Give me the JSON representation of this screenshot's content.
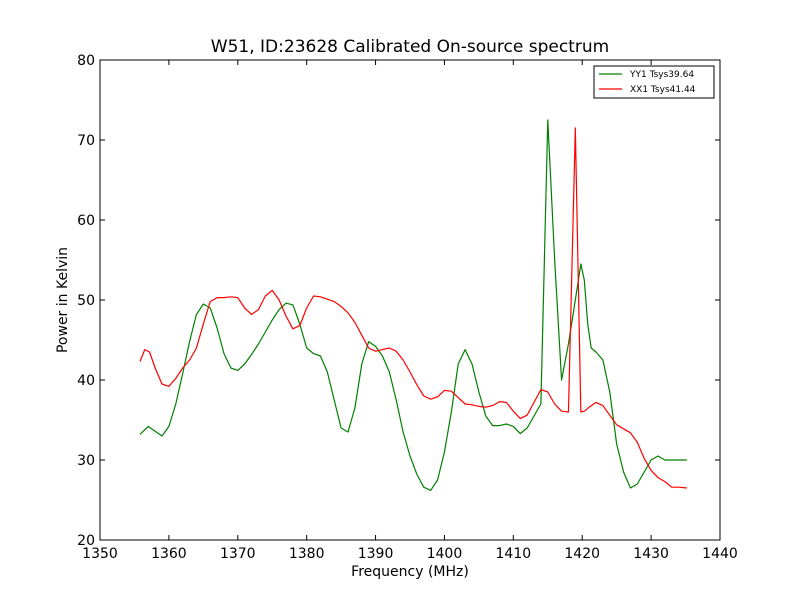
{
  "chart_data": {
    "type": "line",
    "title": "W51, ID:23628 Calibrated On-source spectrum",
    "xlabel": "Frequency (MHz)",
    "ylabel": "Power in Kelvin",
    "xlim": [
      1350,
      1440
    ],
    "ylim": [
      20,
      80
    ],
    "xticks": [
      1350,
      1360,
      1370,
      1380,
      1390,
      1400,
      1410,
      1420,
      1430,
      1440
    ],
    "yticks": [
      20,
      30,
      40,
      50,
      60,
      70,
      80
    ],
    "grid": false,
    "legend_position": "top-right",
    "series": [
      {
        "name": "YY1 Tsys39.64",
        "color": "#008000",
        "x": [
          1355.8,
          1357.0,
          1358.0,
          1359.0,
          1360.0,
          1361.0,
          1362.0,
          1363.0,
          1364.0,
          1365.0,
          1366.0,
          1367.0,
          1368.0,
          1369.0,
          1370.0,
          1371.0,
          1372.0,
          1373.0,
          1374.0,
          1375.0,
          1376.0,
          1377.0,
          1378.0,
          1379.0,
          1380.0,
          1381.0,
          1382.0,
          1383.0,
          1384.0,
          1385.0,
          1386.0,
          1387.0,
          1388.0,
          1389.0,
          1390.0,
          1391.0,
          1392.0,
          1393.0,
          1394.0,
          1395.0,
          1396.0,
          1397.0,
          1398.0,
          1399.0,
          1400.0,
          1401.0,
          1402.0,
          1403.0,
          1404.0,
          1405.0,
          1406.0,
          1407.0,
          1408.0,
          1409.0,
          1410.0,
          1411.0,
          1412.0,
          1413.0,
          1414.0,
          1415.0,
          1416.0,
          1417.0,
          1418.0,
          1419.0,
          1419.8,
          1420.3,
          1420.8,
          1421.3,
          1422.0,
          1423.0,
          1424.0,
          1425.0,
          1426.0,
          1427.0,
          1428.0,
          1429.0,
          1430.0,
          1431.0,
          1432.0,
          1433.0,
          1434.0,
          1435.2
        ],
        "values": [
          33.2,
          34.2,
          33.6,
          33.0,
          34.2,
          37.0,
          40.8,
          44.8,
          48.2,
          49.5,
          49.0,
          46.5,
          43.3,
          41.5,
          41.2,
          42.0,
          43.2,
          44.5,
          46.0,
          47.5,
          48.8,
          49.6,
          49.4,
          47.0,
          44.0,
          43.3,
          43.0,
          41.0,
          37.5,
          34.0,
          33.5,
          36.5,
          42.0,
          44.8,
          44.2,
          43.0,
          41.0,
          37.5,
          33.5,
          30.5,
          28.2,
          26.6,
          26.2,
          27.5,
          31.0,
          36.0,
          42.0,
          43.8,
          42.0,
          38.5,
          35.5,
          34.3,
          34.3,
          34.5,
          34.2,
          33.3,
          34.0,
          35.5,
          37.0,
          72.5,
          55.0,
          40.0,
          44.5,
          50.0,
          54.5,
          52.5,
          47.0,
          44.0,
          43.5,
          42.5,
          38.5,
          32.0,
          28.5,
          26.5,
          27.0,
          28.5,
          30.0,
          30.5,
          30.0,
          30.0,
          30.0,
          30.0
        ]
      },
      {
        "name": "XX1 Tsys41.44",
        "color": "#ff0000",
        "x": [
          1355.8,
          1356.5,
          1357.2,
          1358.0,
          1359.0,
          1360.0,
          1361.0,
          1362.0,
          1363.0,
          1364.0,
          1365.0,
          1366.0,
          1367.0,
          1368.0,
          1369.0,
          1370.0,
          1371.0,
          1372.0,
          1373.0,
          1374.0,
          1375.0,
          1376.0,
          1377.0,
          1378.0,
          1379.0,
          1380.0,
          1381.0,
          1382.0,
          1383.0,
          1384.0,
          1385.0,
          1386.0,
          1387.0,
          1388.0,
          1389.0,
          1390.0,
          1391.0,
          1392.0,
          1393.0,
          1394.0,
          1395.0,
          1396.0,
          1397.0,
          1398.0,
          1399.0,
          1400.0,
          1401.0,
          1402.0,
          1403.0,
          1404.0,
          1405.0,
          1406.0,
          1407.0,
          1408.0,
          1409.0,
          1410.0,
          1411.0,
          1412.0,
          1413.0,
          1414.0,
          1415.0,
          1416.0,
          1417.0,
          1418.0,
          1419.0,
          1419.8,
          1420.3,
          1421.0,
          1422.0,
          1423.0,
          1424.0,
          1425.0,
          1426.0,
          1427.0,
          1428.0,
          1429.0,
          1430.0,
          1431.0,
          1432.0,
          1433.0,
          1434.0,
          1435.2
        ],
        "values": [
          42.3,
          43.8,
          43.5,
          41.5,
          39.5,
          39.2,
          40.2,
          41.5,
          42.5,
          44.0,
          47.0,
          49.8,
          50.3,
          50.3,
          50.4,
          50.3,
          49.0,
          48.2,
          48.8,
          50.5,
          51.2,
          50.0,
          48.0,
          46.4,
          46.8,
          49.0,
          50.5,
          50.4,
          50.1,
          49.8,
          49.2,
          48.4,
          47.2,
          45.6,
          44.0,
          43.6,
          43.8,
          44.0,
          43.6,
          42.5,
          41.0,
          39.4,
          38.0,
          37.6,
          37.9,
          38.7,
          38.6,
          37.8,
          37.0,
          36.9,
          36.7,
          36.6,
          36.8,
          37.3,
          37.2,
          36.1,
          35.2,
          35.6,
          37.2,
          38.8,
          38.5,
          37.0,
          36.1,
          36.0,
          71.5,
          36.0,
          36.1,
          36.6,
          37.2,
          36.8,
          35.6,
          34.4,
          33.9,
          33.4,
          32.2,
          30.2,
          28.7,
          27.8,
          27.3,
          26.6,
          26.6,
          26.5
        ]
      }
    ]
  }
}
